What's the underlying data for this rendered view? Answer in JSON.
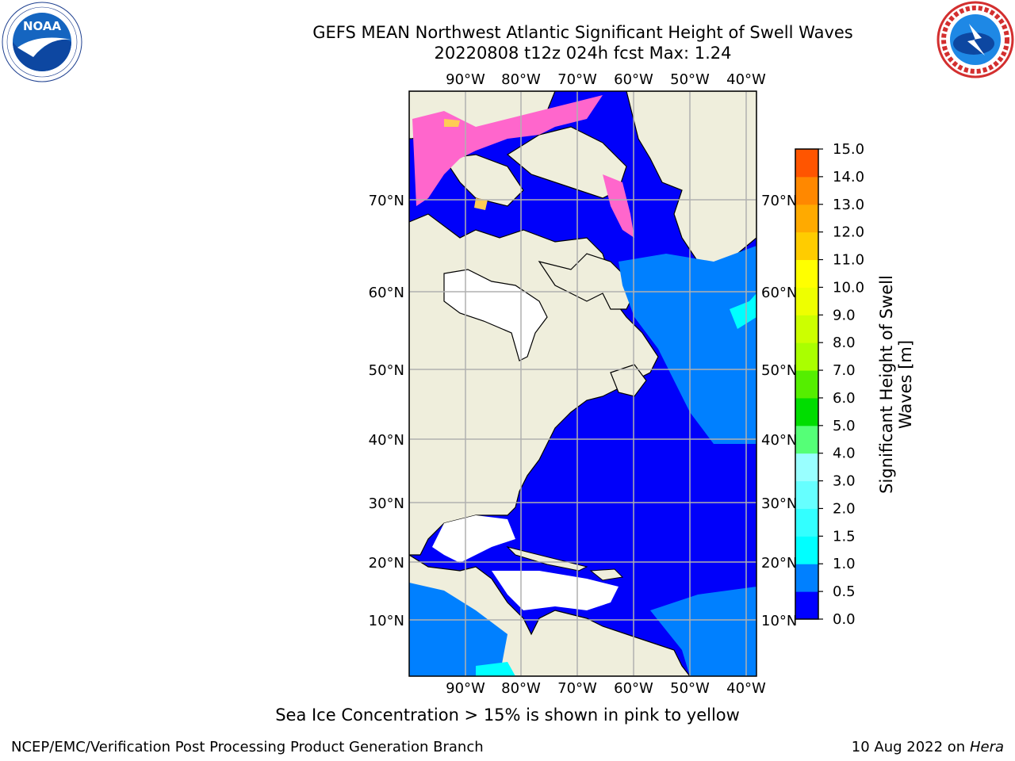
{
  "title": {
    "line1": "GEFS MEAN Northwest Atlantic Significant Height of Swell Waves",
    "line2": "20220808 t12z 024h fcst   Max: 1.24"
  },
  "logos": {
    "left": "noaa-logo",
    "right": "nws-logo"
  },
  "map": {
    "lon_ticks": [
      "90°W",
      "80°W",
      "70°W",
      "60°W",
      "50°W",
      "40°W"
    ],
    "lat_ticks": [
      "70°N",
      "60°N",
      "50°N",
      "40°N",
      "30°N",
      "20°N",
      "10°N"
    ],
    "colors": {
      "land": "#efeedc",
      "ocean_low": "#0000fa",
      "ocean_mid": "#0080ff",
      "ocean_high": "#00ffff",
      "ice": "#ff66cc",
      "grid": "#b0b0b0"
    }
  },
  "colorbar": {
    "label": "Significant Height of Swell Waves [m]",
    "ticks": [
      "0.0",
      "0.5",
      "1.0",
      "1.5",
      "2.0",
      "3.0",
      "4.0",
      "5.0",
      "6.0",
      "7.0",
      "8.0",
      "9.0",
      "10.0",
      "11.0",
      "12.0",
      "13.0",
      "14.0",
      "15.0"
    ],
    "colors": [
      "#0000ff",
      "#0080ff",
      "#00ffff",
      "#33ffff",
      "#66ffff",
      "#99ffff",
      "#55ff77",
      "#00dd00",
      "#55ee00",
      "#aaff00",
      "#ccff00",
      "#eeff00",
      "#ffff00",
      "#ffcc00",
      "#ffaa00",
      "#ff8800",
      "#ff5500",
      "#ff2200",
      "#ff0000"
    ]
  },
  "caption": "Sea Ice Concentration > 15% is shown in pink to yellow",
  "footer": {
    "left": "NCEP/EMC/Verification Post Processing Product Generation Branch",
    "right_date": "10 Aug 2022 on",
    "right_host": "Hera"
  }
}
